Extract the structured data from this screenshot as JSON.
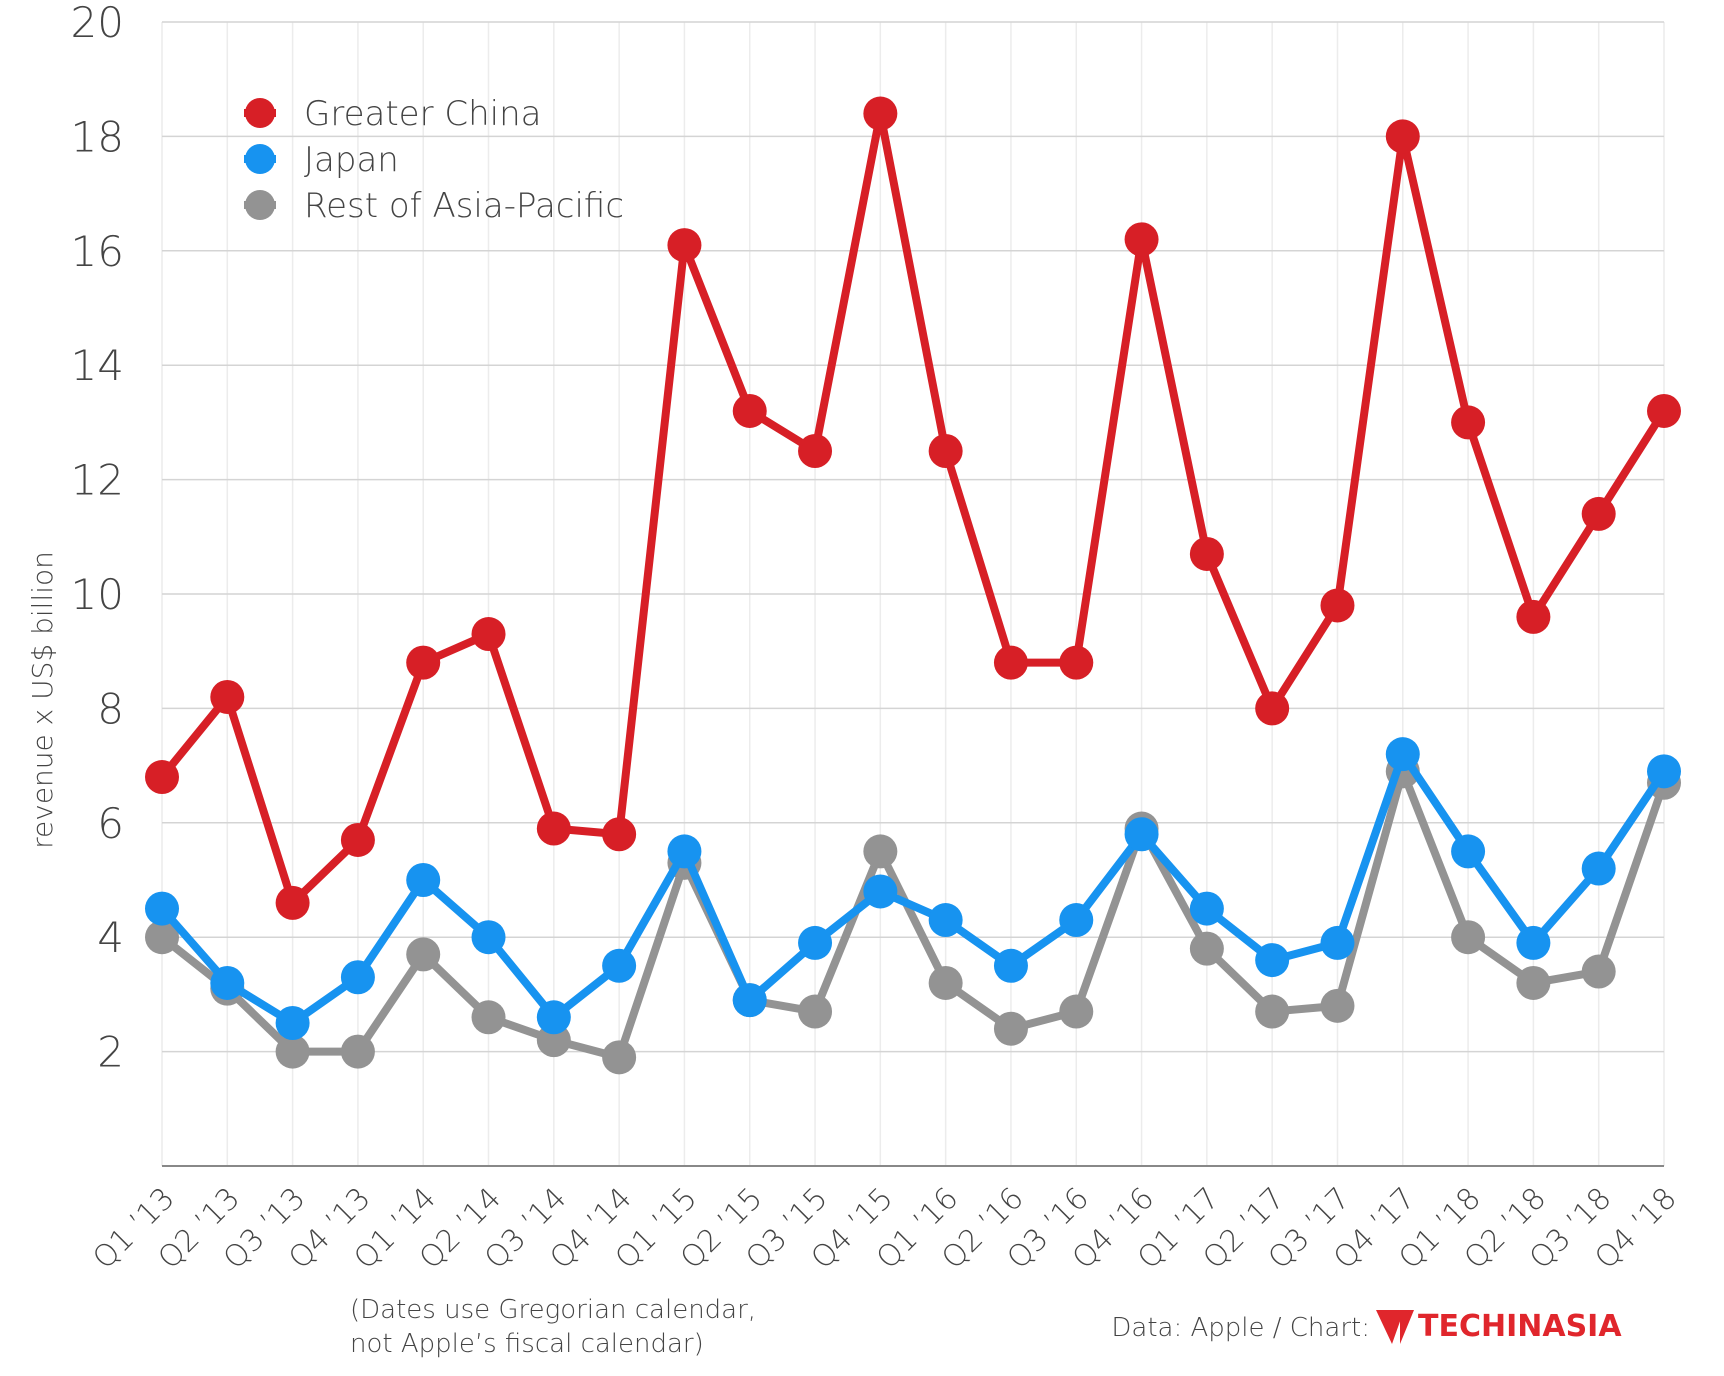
{
  "chart_data": {
    "type": "line",
    "y_label": "revenue x US$ billion",
    "categories": [
      "Q1 ’13",
      "Q2 ’13",
      "Q3 ’13",
      "Q4 ’13",
      "Q1 ’14",
      "Q2 ’14",
      "Q3 ’14",
      "Q4 ’14",
      "Q1 ’15",
      "Q2 ’15",
      "Q3 ’15",
      "Q4 ’15",
      "Q1 ’16",
      "Q2 ’16",
      "Q3 ’16",
      "Q4 ’16",
      "Q1 ’17",
      "Q2 ’17",
      "Q3 ’17",
      "Q4 ’17",
      "Q1 ’18",
      "Q2 ’18",
      "Q3 ’18",
      "Q4 ’18"
    ],
    "series": [
      {
        "name": "Greater China",
        "color": "#d71f26",
        "values": [
          6.8,
          8.2,
          4.6,
          5.7,
          8.8,
          9.3,
          5.9,
          5.8,
          16.1,
          13.2,
          12.5,
          18.4,
          12.5,
          8.8,
          8.8,
          16.2,
          10.7,
          8.0,
          9.8,
          18.0,
          13.0,
          9.6,
          11.4,
          13.2
        ]
      },
      {
        "name": "Japan",
        "color": "#1793f0",
        "values": [
          4.5,
          3.2,
          2.5,
          3.3,
          5.0,
          4.0,
          2.6,
          3.5,
          5.5,
          2.9,
          3.9,
          4.8,
          4.3,
          3.5,
          4.3,
          5.8,
          4.5,
          3.6,
          3.9,
          7.2,
          5.5,
          3.9,
          5.2,
          6.9
        ]
      },
      {
        "name": "Rest of Asia-Pacific",
        "color": "#939393",
        "values": [
          4.0,
          3.1,
          2.0,
          2.0,
          3.7,
          2.6,
          2.2,
          1.9,
          5.3,
          2.9,
          2.7,
          5.5,
          3.2,
          2.4,
          2.7,
          5.9,
          3.8,
          2.7,
          2.8,
          6.9,
          4.0,
          3.2,
          3.4,
          6.7
        ]
      }
    ],
    "ylim": [
      0,
      20
    ],
    "yticks": [
      2,
      4,
      6,
      8,
      10,
      12,
      14,
      16,
      18,
      20
    ],
    "grid": true,
    "legend": "top-left",
    "note": [
      "(Dates use Gregorian calendar,",
      "not Apple’s fiscal calendar)"
    ],
    "source": "Data: Apple / Chart:",
    "source_logo": "TECHINASIA"
  }
}
